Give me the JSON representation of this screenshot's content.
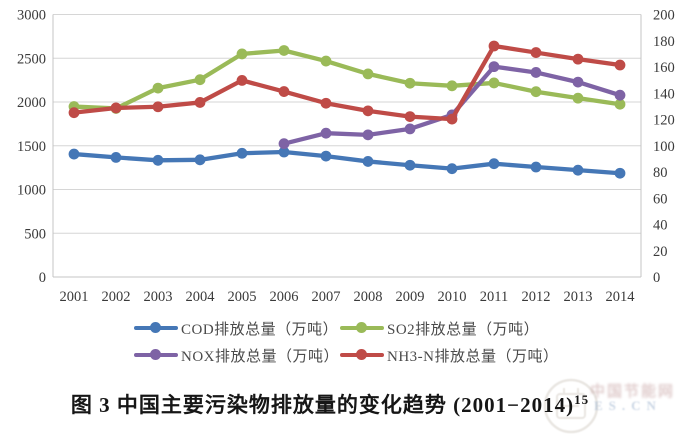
{
  "caption": {
    "text": "图 3 中国主要污染物排放量的变化趋势 (2001−2014)",
    "superscript": "15"
  },
  "watermark": {
    "cjk": "中国节能网",
    "latin": "ES.CN"
  },
  "legend": {
    "items": [
      {
        "key": "cod",
        "label": "COD排放总量（万吨）",
        "color": "#4577b6"
      },
      {
        "key": "so2",
        "label": "SO2排放总量（万吨）",
        "color": "#9aba58"
      },
      {
        "key": "nox",
        "label": "NOX排放总量（万吨）",
        "color": "#7e63a5"
      },
      {
        "key": "nh3n",
        "label": "NH3-N排放总量（万吨）",
        "color": "#bf4b47"
      }
    ]
  },
  "chart_data": {
    "type": "line",
    "title": "",
    "xlabel": "",
    "ylabel_left": "",
    "ylabel_right": "",
    "grid": true,
    "legend_position": "bottom",
    "x": [
      2001,
      2002,
      2003,
      2004,
      2005,
      2006,
      2007,
      2008,
      2009,
      2010,
      2011,
      2012,
      2013,
      2014
    ],
    "left_axis": {
      "min": 0,
      "max": 3000,
      "step": 500,
      "ticks": [
        0,
        500,
        1000,
        1500,
        2000,
        2500,
        3000
      ]
    },
    "right_axis": {
      "min": 0,
      "max": 200,
      "step": 20,
      "ticks": [
        0,
        20,
        40,
        60,
        80,
        100,
        120,
        140,
        160,
        180,
        200
      ]
    },
    "series": [
      {
        "key": "cod",
        "name": "COD排放总量（万吨）",
        "axis": "left",
        "color": "#4577b6",
        "values": [
          1404.8,
          1366.9,
          1333.6,
          1339.2,
          1414.2,
          1428.2,
          1381.8,
          1320.7,
          1277.5,
          1238.1,
          1295,
          1257,
          1221,
          1186
        ]
      },
      {
        "key": "so2",
        "name": "SO2排放总量（万吨）",
        "axis": "left",
        "color": "#9aba58",
        "values": [
          1947.8,
          1926.6,
          2158.7,
          2254.9,
          2549.3,
          2588.8,
          2468.1,
          2321.2,
          2214.4,
          2185.1,
          2217.9,
          2117.6,
          2043.9,
          1974.4
        ]
      },
      {
        "key": "nox",
        "name": "NOX排放总量（万吨）",
        "axis": "left",
        "color": "#7e63a5",
        "values": [
          null,
          null,
          null,
          null,
          null,
          1523.8,
          1643.4,
          1624.5,
          1692.7,
          1852.4,
          2404.3,
          2337.8,
          2227.4,
          2078.0
        ]
      },
      {
        "key": "nh3n",
        "name": "NH3-N排放总量（万吨）",
        "axis": "right",
        "color": "#bf4b47",
        "values": [
          125.2,
          128.8,
          129.7,
          133.0,
          149.8,
          141.3,
          132.4,
          126.6,
          122.2,
          120.3,
          176.0,
          171.0,
          166.0,
          161.5
        ]
      }
    ]
  },
  "style": {
    "grid_color": "#d6d6d6",
    "axis_color": "#c4c4c4",
    "tick_text_color": "#3a3a3a"
  }
}
